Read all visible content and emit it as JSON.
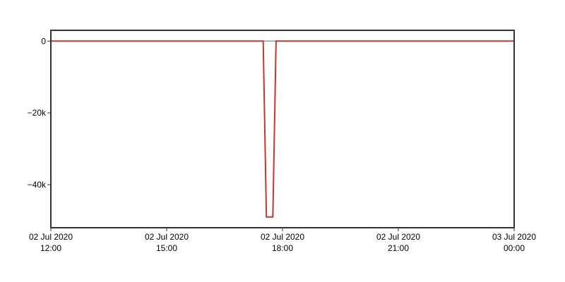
{
  "chart_data": {
    "type": "line",
    "title": "",
    "xlabel": "",
    "ylabel": "",
    "x_axis": {
      "type": "datetime",
      "range": [
        "2020-07-02T12:00",
        "2020-07-03T00:00"
      ],
      "ticks": [
        {
          "value": "2020-07-02T12:00",
          "line1": "02 Jul 2020",
          "line2": "12:00"
        },
        {
          "value": "2020-07-02T15:00",
          "line1": "02 Jul 2020",
          "line2": "15:00"
        },
        {
          "value": "2020-07-02T18:00",
          "line1": "02 Jul 2020",
          "line2": "18:00"
        },
        {
          "value": "2020-07-02T21:00",
          "line1": "02 Jul 2020",
          "line2": "21:00"
        },
        {
          "value": "2020-07-03T00:00",
          "line1": "03 Jul 2020",
          "line2": "00:00"
        }
      ]
    },
    "y_axis": {
      "range": [
        -52000,
        3000
      ],
      "ticks": [
        {
          "value": 0,
          "label": "0"
        },
        {
          "value": -20000,
          "label": "−20k"
        },
        {
          "value": -40000,
          "label": "−40k"
        }
      ]
    },
    "grid": false,
    "legend": "none",
    "series": [
      {
        "color": "#c0392b",
        "points": [
          {
            "x": "2020-07-02T12:00",
            "y": 0
          },
          {
            "x": "2020-07-02T17:30",
            "y": 0
          },
          {
            "x": "2020-07-02T17:35",
            "y": -49000
          },
          {
            "x": "2020-07-02T17:45",
            "y": -49000
          },
          {
            "x": "2020-07-02T17:50",
            "y": 0
          },
          {
            "x": "2020-07-03T00:00",
            "y": 0
          }
        ]
      }
    ],
    "baseline": {
      "y": 0,
      "color": "#999999"
    }
  }
}
